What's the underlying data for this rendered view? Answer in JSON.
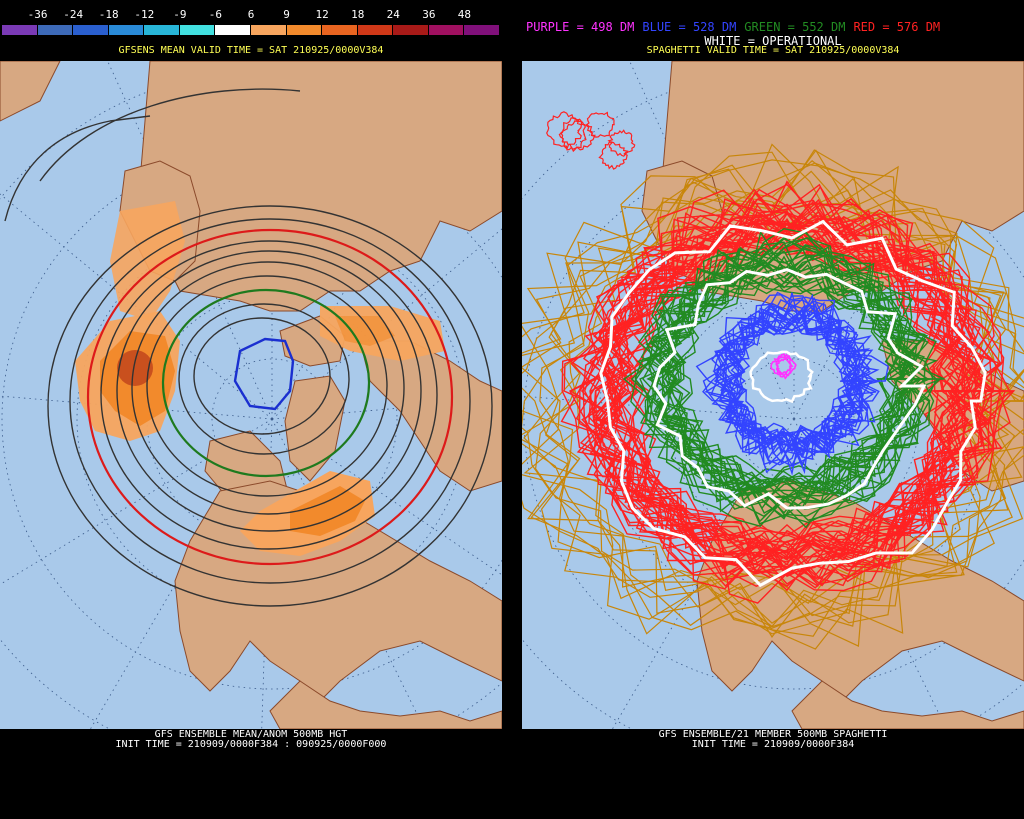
{
  "colors": {
    "ocean": "#a9c9ea",
    "land": "#d7a882",
    "border": "#8b4a2b",
    "anom_light": "#f7a55e",
    "anom_mid": "#f28a2c",
    "anom_dark": "#c9501e"
  },
  "left": {
    "scale": {
      "labels": [
        "-36",
        "-24",
        "-18",
        "-12",
        "-9",
        "-6",
        "6",
        "9",
        "12",
        "18",
        "24",
        "36",
        "48"
      ],
      "colors": [
        "#7a3ab5",
        "#3d6ab8",
        "#2a5fcf",
        "#2a8bd8",
        "#28b6d8",
        "#42e0e0",
        "#ffffff",
        "#f7a55e",
        "#f28a2c",
        "#e86420",
        "#d03818",
        "#a81a18",
        "#a01060",
        "#80107a"
      ]
    },
    "title": "GFSENS MEAN VALID TIME = SAT 210925/0000V384",
    "footer_line1": "GFS ENSEMBLE MEAN/ANOM 500MB HGT",
    "footer_line2": "INIT TIME = 210909/0000F384 : 090925/0000F000"
  },
  "right": {
    "legend": {
      "purple": "PURPLE = 498 DM",
      "blue": "BLUE = 528 DM",
      "green": "GREEN = 552 DM",
      "red": "RED = 576 DM",
      "white": "WHITE = OPERATIONAL"
    },
    "legend_colors": {
      "purple": "#ff33ff",
      "blue": "#3344ff",
      "green": "#228b22",
      "red": "#ff2222",
      "white": "#ffffff"
    },
    "title": "SPAGHETTI VALID TIME = SAT 210925/0000V384",
    "footer_line1": "GFS ENSEMBLE/21 MEMBER 500MB SPAGHETTI",
    "footer_line2": "INIT TIME = 210909/0000F384"
  }
}
